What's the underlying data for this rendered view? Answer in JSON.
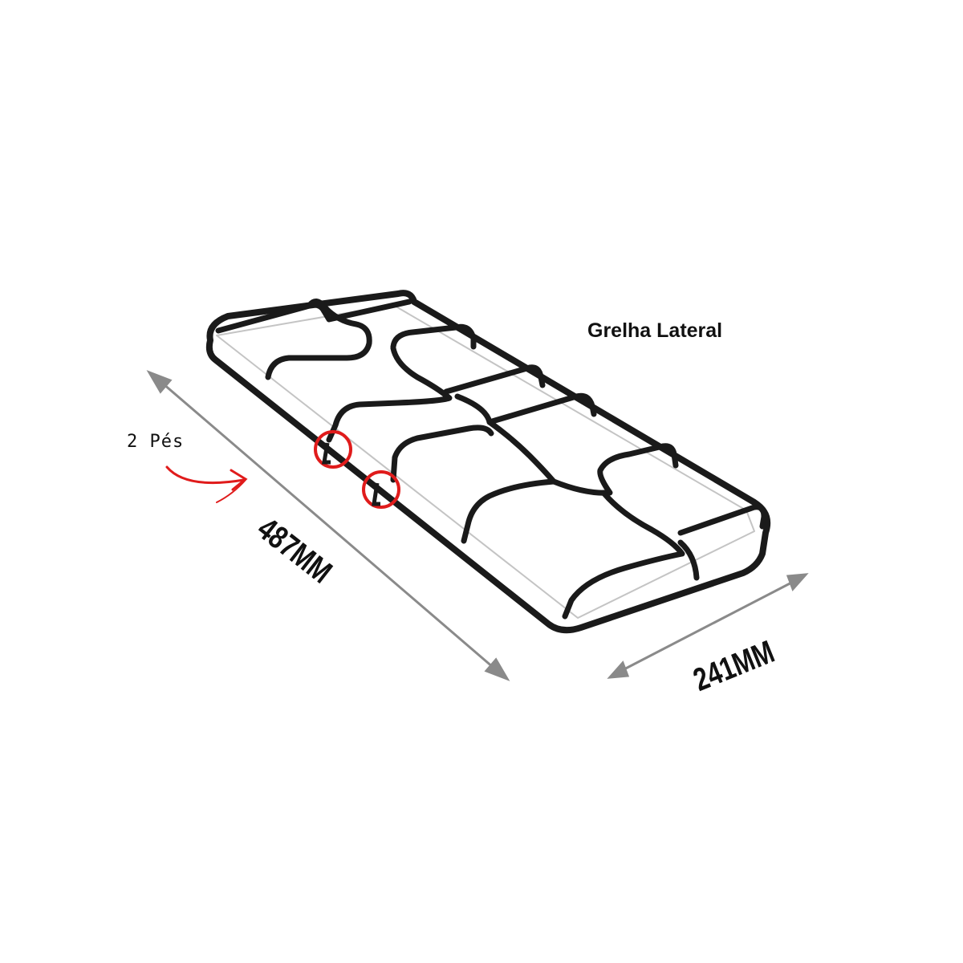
{
  "title": "Grelha Lateral",
  "feet_label": "2 Pés",
  "dimensions": {
    "length": "487MM",
    "width": "241MM"
  },
  "colors": {
    "grate": "#1a1a1a",
    "dimension_arrow": "#8a8a8a",
    "highlight": "#e01b1b"
  },
  "icons": {
    "feet_pointer": "red-curved-arrow-icon",
    "foot_marker": "red-circle-icon"
  }
}
